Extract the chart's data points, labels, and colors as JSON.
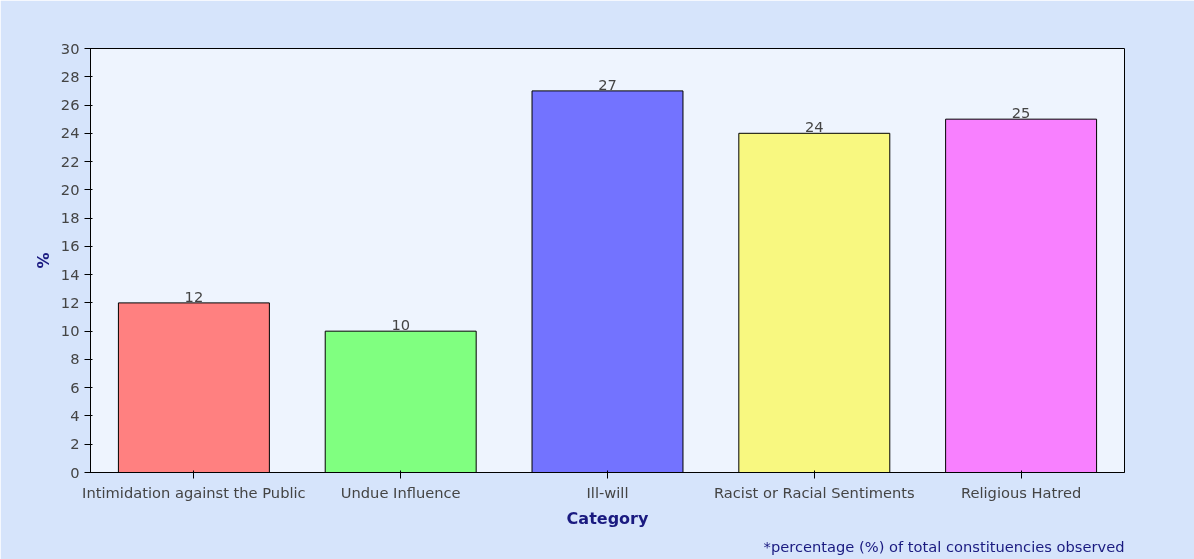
{
  "chart_data": {
    "type": "bar",
    "xlabel": "Category",
    "ylabel": "%",
    "categories": [
      "Intimidation against the Public",
      "Undue Influence",
      "Ill-will",
      "Racist or Racial Sentiments",
      "Religious Hatred"
    ],
    "values": [
      12,
      10,
      27,
      24,
      25
    ],
    "colors": [
      "#ff8080",
      "#80ff80",
      "#7373ff",
      "#f8f880",
      "#f880ff"
    ],
    "ylim": [
      0,
      30
    ],
    "yticks": [
      0,
      2,
      4,
      6,
      8,
      10,
      12,
      14,
      16,
      18,
      20,
      22,
      24,
      26,
      28,
      30
    ],
    "data_labels": true,
    "grid": false,
    "annotations": [
      "*percentage (%) of total constituencies observed"
    ]
  }
}
